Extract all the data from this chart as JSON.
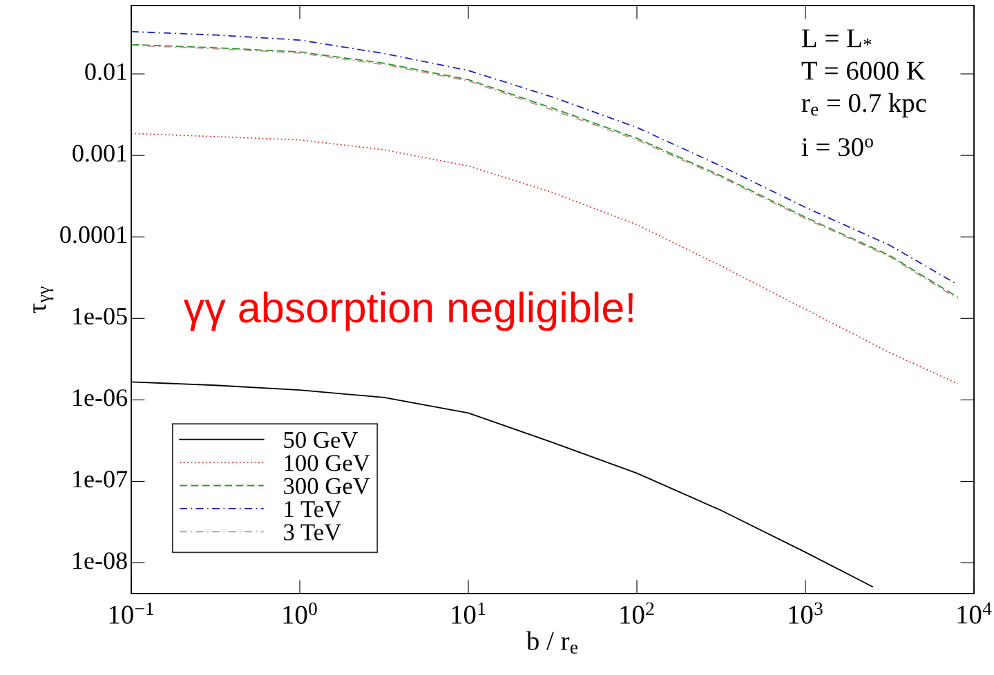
{
  "chart_data": {
    "type": "line",
    "xlabel": "b / r$_{e}$",
    "ylabel": "τ$_{γγ}$",
    "log": "xy",
    "grid": false,
    "legend": "bottom left",
    "marker": "none",
    "xlim": [
      0.1,
      10000
    ],
    "ylim": [
      4.2e-09,
      0.069
    ],
    "xticks": [
      {
        "value": 0.1,
        "label": "10$^{−1}$"
      },
      {
        "value": 1,
        "label": "10$^{0}$"
      },
      {
        "value": 10,
        "label": "10$^{1}$"
      },
      {
        "value": 100,
        "label": "10$^{2}$"
      },
      {
        "value": 1000,
        "label": "10$^{3}$"
      },
      {
        "value": 10000,
        "label": "10$^{4}$"
      }
    ],
    "yticks": [
      0.01,
      0.001,
      0.0001,
      1e-05,
      1e-06,
      1e-07,
      1e-08
    ],
    "series": [
      {
        "name": "50 GeV",
        "color": "#000000",
        "line_style": "solid",
        "x": [
          0.1,
          0.316,
          1,
          3.16,
          10,
          31.6,
          100,
          316,
          1000,
          2500
        ],
        "values": [
          1.66e-06,
          1.51e-06,
          1.32e-06,
          1.07e-06,
          6.9e-07,
          3e-07,
          1.26e-07,
          4.4e-08,
          1.35e-08,
          5.1e-09
        ]
      },
      {
        "name": "100 GeV",
        "color": "#e03030",
        "line_style": "dotted",
        "x": [
          0.1,
          0.316,
          1,
          3.16,
          10,
          31.6,
          100,
          316,
          1000,
          3160,
          8000
        ],
        "values": [
          0.00186,
          0.0017,
          0.00155,
          0.00117,
          0.00074,
          0.00035,
          0.000141,
          4.4e-05,
          1.29e-05,
          3.8e-06,
          1.58e-06
        ]
      },
      {
        "name": "300 GeV",
        "color": "#2a9a2a",
        "line_style": "dashed",
        "x": [
          0.1,
          0.316,
          1,
          3.16,
          10,
          31.6,
          100,
          316,
          1000,
          3160,
          8000
        ],
        "values": [
          0.0229,
          0.0209,
          0.0186,
          0.0135,
          0.0085,
          0.0038,
          0.00162,
          0.00056,
          0.000174,
          5.9e-05,
          1.82e-05
        ]
      },
      {
        "name": "1 TeV",
        "color": "#2020c0",
        "line_style": "dashdot",
        "x": [
          0.1,
          0.316,
          1,
          3.16,
          10,
          31.6,
          100,
          316,
          1000,
          3160,
          8000
        ],
        "values": [
          0.033,
          0.03,
          0.026,
          0.0178,
          0.011,
          0.0052,
          0.0022,
          0.00074,
          0.00023,
          7.9e-05,
          2.6e-05
        ]
      },
      {
        "name": "3 TeV",
        "color": "#c89090",
        "line_style": "dashdot",
        "x": [
          0.1,
          0.316,
          1,
          3.16,
          10,
          31.6,
          100,
          316,
          1000,
          3160,
          8000
        ],
        "values": [
          0.0224,
          0.0204,
          0.018,
          0.013,
          0.0082,
          0.0036,
          0.00155,
          0.00054,
          0.000168,
          5.7e-05,
          1.75e-05
        ]
      }
    ],
    "annotations": [
      "L = L$_{*}$",
      "T = 6000 K",
      "r$_{e}$ = 0.7 kpc",
      "i = 30$^{o}$",
      "γγ absorption negligible!"
    ]
  }
}
